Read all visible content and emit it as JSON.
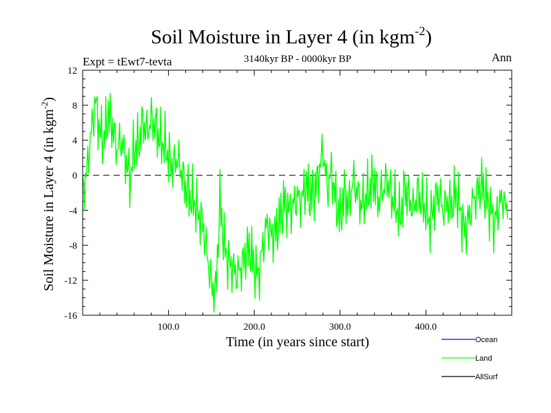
{
  "chart_data": {
    "type": "line",
    "title": "Soil Moisture in Layer 4 (in kgm",
    "title_sup": "-2",
    "title_close": ")",
    "subtitle": "3140kyr BP - 0000kyr BP",
    "expt_label": "Expt = tEwt7-tevta",
    "season_label": "Ann",
    "xlabel": "Time (in years since start)",
    "ylabel": "Soil Moisture in Layer 4 (in kgm",
    "ylabel_sup": "-2",
    "ylabel_close": ")",
    "xlim": [
      0,
      500
    ],
    "ylim": [
      -16,
      12
    ],
    "x_ticks": [
      100,
      200,
      300,
      400
    ],
    "x_tick_labels": [
      "100.0",
      "200.0",
      "300.0",
      "400.0"
    ],
    "y_ticks": [
      12,
      8,
      4,
      0,
      -4,
      -8,
      -12,
      -16
    ],
    "y_tick_labels": [
      "12",
      "8",
      "4",
      "0",
      "-4",
      "-8",
      "-12",
      "-16"
    ],
    "zero_line": true,
    "colors": {
      "Ocean": "#0000ff",
      "Land": "#00ff00",
      "AllSurf": "#000000"
    },
    "legend": [
      "Ocean",
      "Land",
      "AllSurf"
    ],
    "series": [
      {
        "name": "Land",
        "x_start": 0,
        "x_step": 5,
        "values": [
          -2,
          0.5,
          5,
          8.5,
          5,
          4,
          7,
          5.5,
          3,
          4,
          2,
          -0.5,
          3,
          3.5,
          6,
          5,
          6.5,
          5.5,
          4,
          3.5,
          2,
          1,
          2,
          0.5,
          -1.5,
          -2.5,
          -3,
          -4.5,
          -5.5,
          -9,
          -12.5,
          -13.5,
          -3,
          -8,
          -10,
          -10.5,
          -11.5,
          -10.5,
          -9,
          -8.5,
          -10.5,
          -11.5,
          -8,
          -5.5,
          -7,
          -6.5,
          -5,
          -3,
          -4,
          -3.5,
          -2.5,
          -3,
          -1,
          -2.5,
          -2,
          0,
          3,
          -1.5,
          0.5,
          -3,
          -5,
          -2,
          -3.5,
          -0.5,
          -2,
          -3.5,
          -2.5,
          -1.5,
          -0.5,
          -3,
          -1.5,
          -0.5,
          -2.5,
          -3.5,
          -5,
          -1.5,
          -2.5,
          -4,
          -2,
          -3,
          -4,
          -5.5,
          -3,
          -2,
          -4,
          -3,
          -3.5,
          -2,
          -4,
          -6.5,
          -5,
          -3,
          -2,
          -1,
          -2.5,
          -4,
          -5.5,
          -3.5,
          -2.5,
          -5
        ]
      }
    ]
  }
}
